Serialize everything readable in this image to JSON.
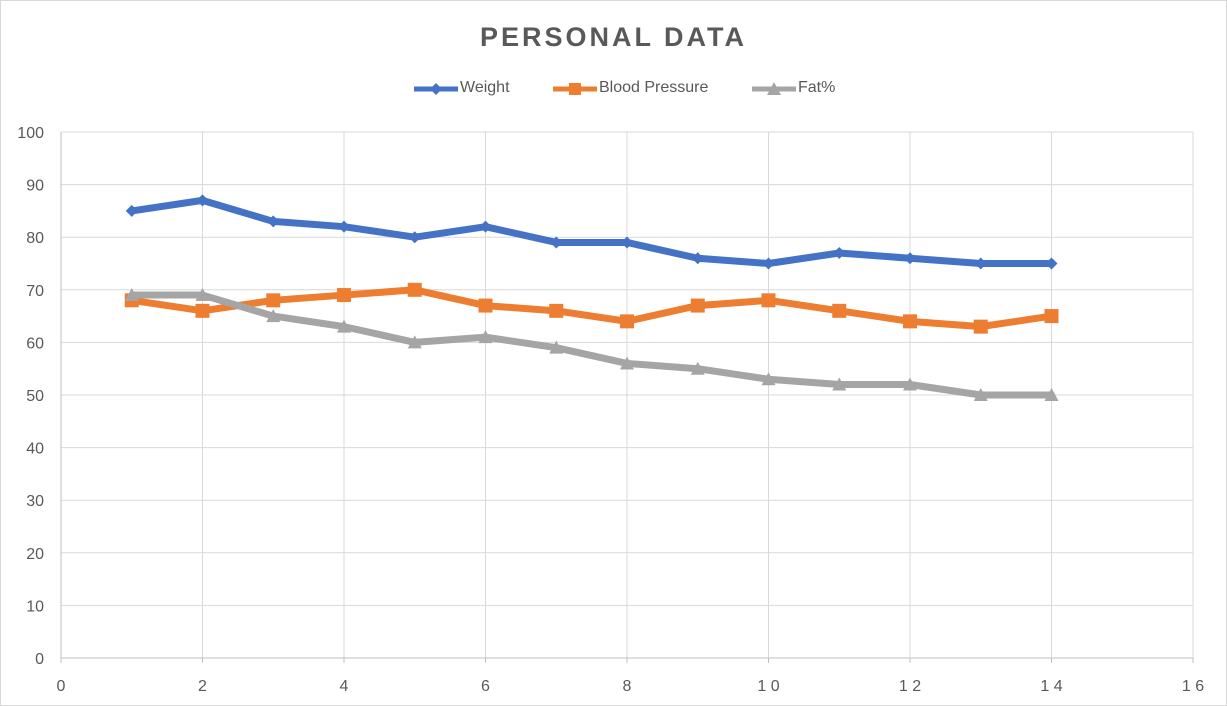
{
  "chart_data": {
    "type": "line",
    "title": "PERSONAL DATA",
    "xlabel": "",
    "ylabel": "",
    "xlim": [
      0,
      16
    ],
    "ylim": [
      0,
      100
    ],
    "xticks": [
      0,
      2,
      4,
      6,
      8,
      10,
      12,
      14,
      16
    ],
    "xtick_labels": [
      "0",
      "2",
      "4",
      "6",
      "8",
      "1 0",
      "1 2",
      "1 4",
      "1 6"
    ],
    "yticks": [
      0,
      10,
      20,
      30,
      40,
      50,
      60,
      70,
      80,
      90,
      100
    ],
    "grid": true,
    "legend_position": "top",
    "x": [
      1,
      2,
      3,
      4,
      5,
      6,
      7,
      8,
      9,
      10,
      11,
      12,
      13,
      14
    ],
    "series": [
      {
        "name": "Weight",
        "color": "#4472c4",
        "marker": "diamond",
        "values": [
          85,
          87,
          83,
          82,
          80,
          82,
          79,
          79,
          76,
          75,
          77,
          76,
          75,
          75
        ]
      },
      {
        "name": "Blood Pressure",
        "color": "#ed7d31",
        "marker": "square",
        "values": [
          68,
          66,
          68,
          69,
          70,
          67,
          66,
          64,
          67,
          68,
          66,
          64,
          63,
          65
        ]
      },
      {
        "name": "Fat%",
        "color": "#a5a5a5",
        "marker": "triangle",
        "values": [
          69,
          69,
          65,
          63,
          60,
          61,
          59,
          56,
          55,
          53,
          52,
          52,
          50,
          50
        ]
      }
    ]
  }
}
